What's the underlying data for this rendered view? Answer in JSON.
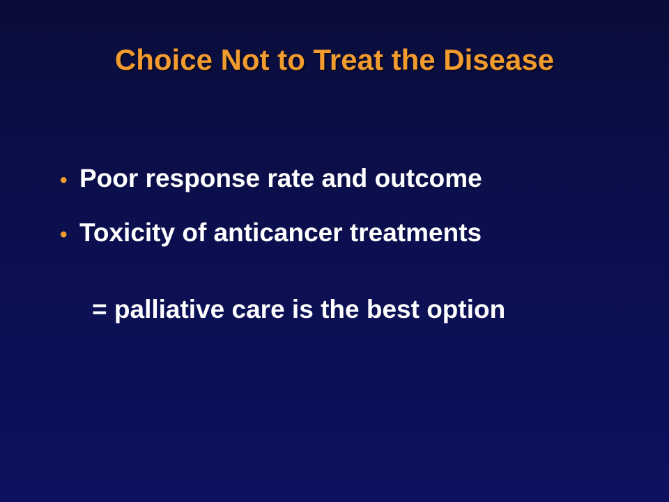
{
  "slide": {
    "title": "Choice Not to Treat the Disease",
    "bullets": [
      {
        "marker": "•",
        "text": "Poor response rate and outcome"
      },
      {
        "marker": "•",
        "text": "Toxicity of anticancer treatments"
      }
    ],
    "conclusion": "= palliative care is the best option"
  },
  "colors": {
    "background_top": "#0a0d3a",
    "background_bottom": "#0d1160",
    "title": "#f29b2e",
    "bullet_marker": "#f29b2e",
    "body_text": "#ffffff"
  }
}
